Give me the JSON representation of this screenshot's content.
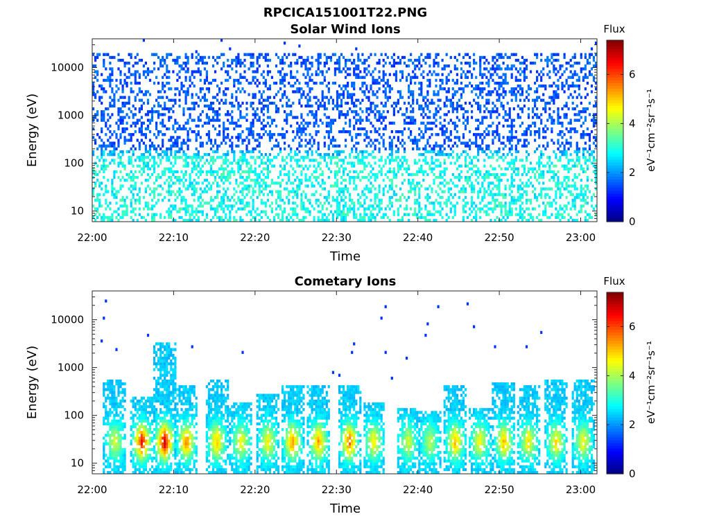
{
  "figure_title": "RPCICA151001T22.PNG",
  "chart_data": [
    {
      "type": "heatmap",
      "title": "Solar Wind Ions",
      "xlabel": "Time",
      "ylabel": "Energy (eV)",
      "x_ticks": [
        "22:00",
        "22:10",
        "22:20",
        "22:30",
        "22:40",
        "22:50",
        "23:00"
      ],
      "x_range_minutes": [
        0,
        62
      ],
      "y_scale": "log",
      "y_ticks": [
        "10",
        "100",
        "1000",
        "10000"
      ],
      "ylim": [
        6,
        40000
      ],
      "colorbar": {
        "label_top": "Flux",
        "units": "eV⁻¹cm⁻²sr⁻¹s⁻¹",
        "ticks": [
          "0",
          "2",
          "4",
          "6"
        ],
        "range": [
          0,
          7.4
        ],
        "colormap": "jet"
      },
      "description_values": {
        "high_energy_band_eV": [
          200,
          20000
        ],
        "high_energy_flux": [
          1.3,
          1.8
        ],
        "low_energy_band_eV": [
          6,
          150
        ],
        "low_energy_flux": [
          2.5,
          3.4
        ]
      },
      "grid": false
    },
    {
      "type": "heatmap",
      "title": "Cometary Ions",
      "xlabel": "Time",
      "ylabel": "Energy (eV)",
      "x_ticks": [
        "22:00",
        "22:10",
        "22:20",
        "22:30",
        "22:40",
        "22:50",
        "23:00"
      ],
      "x_range_minutes": [
        0,
        62
      ],
      "y_scale": "log",
      "y_ticks": [
        "10",
        "100",
        "1000",
        "10000"
      ],
      "ylim": [
        6,
        40000
      ],
      "colorbar": {
        "label_top": "Flux",
        "units": "eV⁻¹cm⁻²sr⁻¹s⁻¹",
        "ticks": [
          "0",
          "2",
          "4",
          "6"
        ],
        "range": [
          0,
          7.4
        ],
        "colormap": "jet"
      },
      "bursts": [
        {
          "t": 2.8,
          "top": 550,
          "peak": 4.2
        },
        {
          "t": 6.1,
          "top": 250,
          "peak": 6.3
        },
        {
          "t": 8.9,
          "top": 3500,
          "peak": 6.6
        },
        {
          "t": 11.6,
          "top": 450,
          "peak": 5.4
        },
        {
          "t": 15.3,
          "top": 550,
          "peak": 5.0
        },
        {
          "t": 18.3,
          "top": 200,
          "peak": 4.5
        },
        {
          "t": 21.6,
          "top": 300,
          "peak": 4.6
        },
        {
          "t": 24.6,
          "top": 450,
          "peak": 5.3
        },
        {
          "t": 27.8,
          "top": 450,
          "peak": 5.2
        },
        {
          "t": 31.6,
          "top": 400,
          "peak": 5.6
        },
        {
          "t": 34.6,
          "top": 200,
          "peak": 4.6
        },
        {
          "t": 38.8,
          "top": 150,
          "peak": 4.2
        },
        {
          "t": 41.5,
          "top": 120,
          "peak": 4.0
        },
        {
          "t": 44.6,
          "top": 400,
          "peak": 5.0
        },
        {
          "t": 47.6,
          "top": 150,
          "peak": 4.5
        },
        {
          "t": 50.6,
          "top": 500,
          "peak": 5.0
        },
        {
          "t": 53.6,
          "top": 450,
          "peak": 4.6
        },
        {
          "t": 57.0,
          "top": 600,
          "peak": 4.7
        },
        {
          "t": 60.3,
          "top": 600,
          "peak": 4.5
        }
      ],
      "grid": false
    }
  ]
}
